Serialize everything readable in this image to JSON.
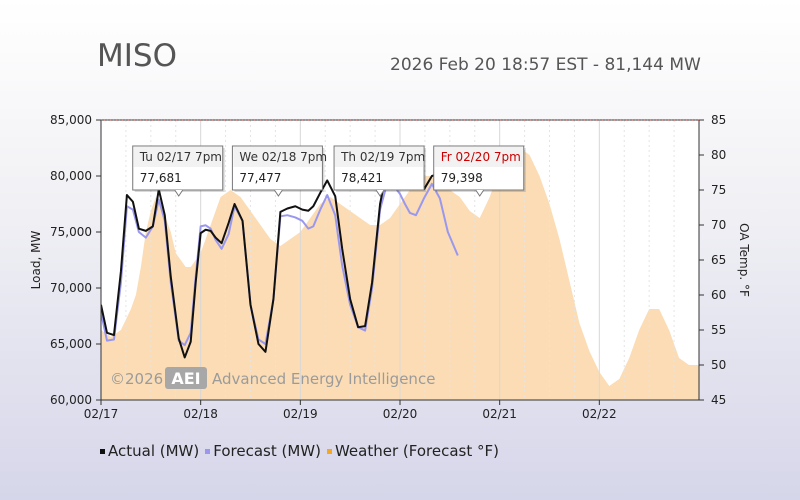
{
  "header": {
    "title": "MISO",
    "subtitle": "2026 Feb 20 18:57 EST - 81,144 MW"
  },
  "chart_data": {
    "type": "line",
    "ylabel": "Load, MW",
    "y2label": "OA Temp. °F",
    "ylim": [
      60000,
      85000
    ],
    "y2lim": [
      45,
      85
    ],
    "yticks": [
      "60,000",
      "65,000",
      "70,000",
      "75,000",
      "80,000",
      "85,000"
    ],
    "y2ticks": [
      "45",
      "50",
      "55",
      "60",
      "65",
      "70",
      "75",
      "80",
      "85"
    ],
    "xticks": [
      "02/17",
      "02/18",
      "02/19",
      "02/20",
      "02/21",
      "02/22"
    ],
    "xlim_days": [
      0,
      6
    ],
    "watermark": "©2026 AEI Advanced Energy Intelligence",
    "watermark_parts": {
      "year": "©2026",
      "logo": "AEI",
      "text": "Advanced Energy Intelligence"
    },
    "colors": {
      "actual": "#111111",
      "forecast": "#9a98ee",
      "weather": "#fbdcb4",
      "highlight": "#cc0000"
    },
    "series": [
      {
        "name": "Actual (MW)",
        "x": [
          0,
          0.06,
          0.13,
          0.2,
          0.26,
          0.32,
          0.38,
          0.45,
          0.52,
          0.58,
          0.64,
          0.7,
          0.78,
          0.84,
          0.9,
          0.95,
          1.0,
          1.05,
          1.1,
          1.15,
          1.21,
          1.28,
          1.34,
          1.42,
          1.5,
          1.58,
          1.65,
          1.73,
          1.8,
          1.87,
          1.95,
          2.02,
          2.08,
          2.13,
          2.2,
          2.27,
          2.35,
          2.42,
          2.5,
          2.58,
          2.65,
          2.72,
          2.8,
          2.86,
          2.92,
          3.0,
          3.05,
          3.1,
          3.16,
          3.24,
          3.32,
          3.4,
          3.48,
          3.56,
          3.65,
          3.72,
          3.8
        ],
        "values": [
          68500,
          66000,
          65800,
          71500,
          78300,
          77700,
          75300,
          75100,
          75500,
          78800,
          76500,
          71000,
          65500,
          63800,
          65200,
          70500,
          74900,
          75200,
          75100,
          74500,
          74000,
          75800,
          77500,
          76000,
          68500,
          65000,
          64300,
          69000,
          76800,
          77100,
          77300,
          77000,
          76900,
          77300,
          78500,
          79600,
          78200,
          73500,
          69000,
          66500,
          66600,
          70500,
          77500,
          80200,
          80600,
          80600,
          80200,
          79500,
          78900,
          78800,
          80000,
          80200,
          80400,
          80700,
          80900,
          81050,
          81144
        ]
      },
      {
        "name": "Forecast (MW)",
        "x": [
          0,
          0.06,
          0.13,
          0.2,
          0.26,
          0.32,
          0.38,
          0.45,
          0.52,
          0.58,
          0.64,
          0.7,
          0.78,
          0.84,
          0.9,
          0.95,
          1.0,
          1.05,
          1.1,
          1.15,
          1.21,
          1.28,
          1.34,
          1.42,
          1.5,
          1.58,
          1.65,
          1.73,
          1.8,
          1.87,
          1.95,
          2.02,
          2.08,
          2.13,
          2.2,
          2.27,
          2.35,
          2.42,
          2.5,
          2.58,
          2.65,
          2.72,
          2.8,
          2.86,
          2.92,
          3.0,
          3.05,
          3.1,
          3.16,
          3.24,
          3.32,
          3.4,
          3.48,
          3.58
        ],
        "values": [
          67800,
          65300,
          65400,
          70500,
          77300,
          77000,
          75000,
          74500,
          75500,
          77900,
          76000,
          70500,
          65300,
          64900,
          66000,
          71000,
          75500,
          75600,
          75300,
          74300,
          73500,
          74800,
          77300,
          76000,
          68500,
          65400,
          65000,
          69000,
          76400,
          76500,
          76300,
          76000,
          75300,
          75500,
          77000,
          78300,
          76500,
          72000,
          68500,
          66500,
          66200,
          70000,
          77000,
          79000,
          79300,
          78400,
          77500,
          76700,
          76500,
          78000,
          79300,
          78000,
          75000,
          72900
        ]
      },
      {
        "name": "Weather (Forecast °F)",
        "x": [
          0,
          0.1,
          0.2,
          0.3,
          0.35,
          0.4,
          0.45,
          0.5,
          0.55,
          0.6,
          0.65,
          0.7,
          0.75,
          0.8,
          0.85,
          0.9,
          0.95,
          1.0,
          1.1,
          1.2,
          1.3,
          1.4,
          1.5,
          1.6,
          1.7,
          1.8,
          1.9,
          2.0,
          2.1,
          2.2,
          2.3,
          2.4,
          2.5,
          2.6,
          2.7,
          2.8,
          2.9,
          3.0,
          3.1,
          3.2,
          3.3,
          3.4,
          3.5,
          3.6,
          3.7,
          3.8,
          3.9,
          4.0,
          4.1,
          4.2,
          4.3,
          4.4,
          4.5,
          4.6,
          4.7,
          4.8,
          4.9,
          5.0,
          5.1,
          5.2,
          5.3,
          5.4,
          5.5,
          5.6,
          5.7,
          5.8,
          5.9,
          6.0
        ],
        "values": [
          55,
          54,
          55,
          58,
          60,
          64,
          69,
          72,
          74,
          73,
          71,
          69,
          66,
          65,
          64,
          64,
          65,
          66,
          70,
          74,
          75,
          74,
          72,
          70,
          68,
          67,
          68,
          69,
          71,
          73,
          74,
          73,
          72,
          71,
          70,
          70,
          71,
          73,
          75,
          77,
          77,
          76,
          75,
          74,
          72,
          71,
          74,
          78,
          80,
          81,
          80,
          77,
          73,
          68,
          62,
          56,
          52,
          49,
          47,
          48,
          51,
          55,
          58,
          58,
          55,
          51,
          50,
          50
        ]
      }
    ],
    "annotations": [
      {
        "x": 0.78,
        "date": "Tu 02/17 7pm",
        "value": "77,681",
        "highlight": false
      },
      {
        "x": 1.78,
        "date": "We 02/18 7pm",
        "value": "77,477",
        "highlight": false
      },
      {
        "x": 2.8,
        "date": "Th 02/19 7pm",
        "value": "78,421",
        "highlight": false
      },
      {
        "x": 3.8,
        "date": "Fr 02/20 7pm",
        "value": "79,398",
        "highlight": true
      }
    ]
  }
}
